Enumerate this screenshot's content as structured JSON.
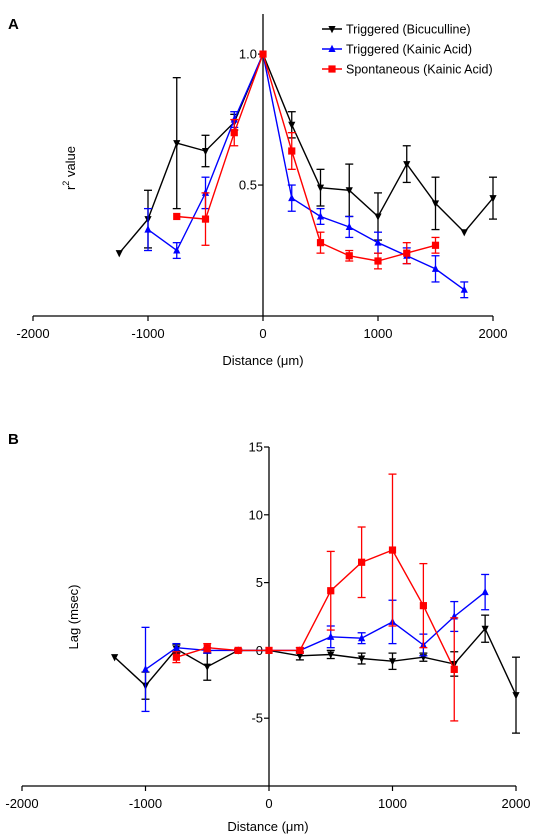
{
  "panels": [
    {
      "label": "A"
    },
    {
      "label": "B"
    }
  ],
  "chart_data": [
    {
      "panel": "A",
      "type": "line",
      "xlabel_prefix": "Distance (",
      "xlabel_unit": "μm",
      "xlabel_suffix": ")",
      "ylabel_base": "r",
      "ylabel_sup": "2",
      "ylabel_rest": " value",
      "xlim": [
        -2000,
        2000
      ],
      "ylim": [
        0,
        1.05
      ],
      "xticks": [
        -2000,
        -1000,
        0,
        1000,
        2000
      ],
      "xtick_labels": [
        "-2000",
        "-1000",
        "0",
        "1000",
        "2000"
      ],
      "yticks": [
        0.5,
        1.0
      ],
      "ytick_labels": [
        "0.5",
        "1.0"
      ],
      "legend_position": "top-right",
      "series": [
        {
          "name": "Triggered (Bicuculline)",
          "color": "#000000",
          "marker": "triangle-down",
          "x": [
            -1250,
            -1000,
            -750,
            -500,
            -250,
            0,
            250,
            500,
            750,
            1000,
            1250,
            1500,
            1750,
            2000
          ],
          "y": [
            0.24,
            0.37,
            0.66,
            0.63,
            0.74,
            1.0,
            0.73,
            0.49,
            0.48,
            0.38,
            0.58,
            0.43,
            0.32,
            0.45
          ],
          "err": [
            0,
            0.11,
            0.25,
            0.06,
            0.03,
            0,
            0.05,
            0.07,
            0.1,
            0.09,
            0.07,
            0.1,
            0,
            0.08
          ]
        },
        {
          "name": "Triggered (Kainic Acid)",
          "color": "#0000ff",
          "marker": "triangle-up",
          "x": [
            -1000,
            -750,
            -500,
            -250,
            0,
            250,
            500,
            750,
            1000,
            1250,
            1500,
            1750
          ],
          "y": [
            0.33,
            0.25,
            0.47,
            0.75,
            1.0,
            0.45,
            0.38,
            0.34,
            0.28,
            0.23,
            0.18,
            0.1
          ],
          "err": [
            0.08,
            0.03,
            0.06,
            0.03,
            0,
            0.05,
            0.03,
            0.04,
            0.04,
            0.03,
            0.05,
            0.03
          ]
        },
        {
          "name": "Spontaneous (Kainic Acid)",
          "color": "#ff0000",
          "marker": "square",
          "x": [
            -750,
            -500,
            -250,
            0,
            250,
            500,
            750,
            1000,
            1250,
            1500
          ],
          "y": [
            0.38,
            0.37,
            0.7,
            1.0,
            0.63,
            0.28,
            0.23,
            0.21,
            0.24,
            0.27
          ],
          "err": [
            0,
            0.1,
            0.05,
            0,
            0.07,
            0.04,
            0.02,
            0.03,
            0.04,
            0.03
          ]
        }
      ]
    },
    {
      "panel": "B",
      "type": "line",
      "xlabel_prefix": "Distance (",
      "xlabel_unit": "μm",
      "xlabel_suffix": ")",
      "ylabel": "Lag (msec)",
      "xlim": [
        -2000,
        2000
      ],
      "ylim": [
        -10,
        15
      ],
      "xticks": [
        -2000,
        -1000,
        0,
        1000,
        2000
      ],
      "xtick_labels": [
        "-2000",
        "-1000",
        "0",
        "1000",
        "2000"
      ],
      "yticks": [
        -5,
        0,
        5,
        10,
        15
      ],
      "ytick_labels": [
        "-5",
        "0",
        "5",
        "10",
        "15"
      ],
      "series": [
        {
          "name": "Triggered (Bicuculline)",
          "color": "#000000",
          "marker": "triangle-down",
          "x": [
            -1250,
            -1000,
            -750,
            -500,
            -250,
            0,
            250,
            500,
            750,
            1000,
            1250,
            1500,
            1750,
            2000
          ],
          "y": [
            -0.5,
            -2.6,
            0.1,
            -1.2,
            0.0,
            0.0,
            -0.4,
            -0.3,
            -0.6,
            -0.8,
            -0.5,
            -1.0,
            1.6,
            -3.3
          ],
          "err": [
            0,
            1.0,
            0.3,
            1.0,
            0.1,
            0,
            0.3,
            0.3,
            0.4,
            0.6,
            0.3,
            0.9,
            1.0,
            2.8
          ]
        },
        {
          "name": "Triggered (Kainic Acid)",
          "color": "#0000ff",
          "marker": "triangle-up",
          "x": [
            -1000,
            -750,
            -500,
            -250,
            0,
            250,
            500,
            750,
            1000,
            1250,
            1500,
            1750
          ],
          "y": [
            -1.4,
            0.2,
            0.0,
            0.0,
            0.0,
            0.0,
            1.0,
            0.9,
            2.1,
            0.4,
            2.5,
            4.3
          ],
          "err": [
            3.1,
            0.3,
            0.2,
            0.1,
            0,
            0.2,
            0.8,
            0.4,
            1.6,
            0.8,
            1.1,
            1.3
          ]
        },
        {
          "name": "Spontaneous (Kainic Acid)",
          "color": "#ff0000",
          "marker": "square",
          "x": [
            -750,
            -500,
            -250,
            0,
            250,
            500,
            750,
            1000,
            1250,
            1500
          ],
          "y": [
            -0.5,
            0.2,
            0.0,
            0.0,
            0.0,
            4.4,
            6.5,
            7.4,
            3.3,
            -1.4
          ],
          "err": [
            0.4,
            0.3,
            0.1,
            0,
            0.2,
            2.9,
            2.6,
            5.6,
            3.1,
            3.8
          ]
        }
      ]
    }
  ]
}
